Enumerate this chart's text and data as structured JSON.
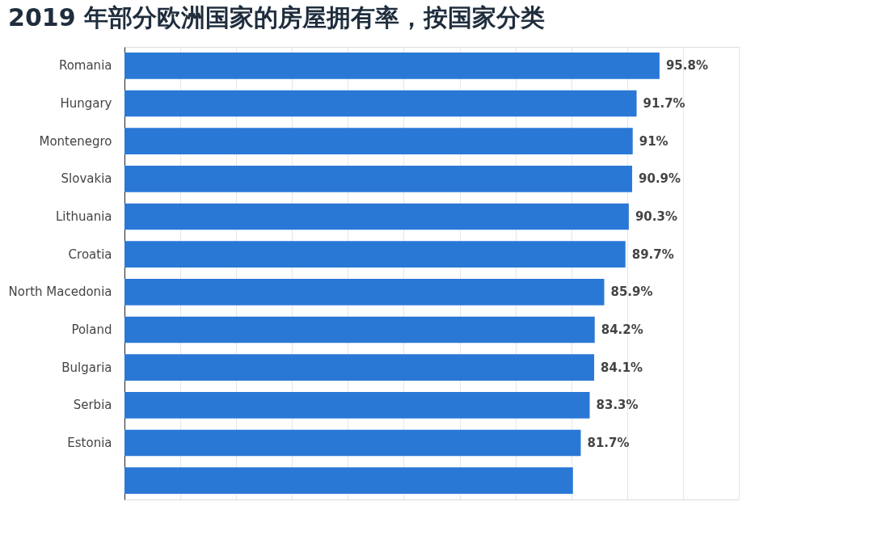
{
  "chart_data": {
    "type": "bar",
    "orientation": "horizontal",
    "title": "2019 年部分欧洲国家的房屋拥有率，按国家分类",
    "categories": [
      "Romania",
      "Hungary",
      "Montenegro",
      "Slovakia",
      "Lithuania",
      "Croatia",
      "North Macedonia",
      "Poland",
      "Bulgaria",
      "Serbia",
      "Estonia",
      null
    ],
    "values": [
      95.8,
      91.7,
      91,
      90.9,
      90.3,
      89.7,
      85.9,
      84.2,
      84.1,
      83.3,
      81.7,
      80.3
    ],
    "value_labels": [
      "95.8%",
      "91.7%",
      "91%",
      "90.9%",
      "90.3%",
      "89.7%",
      "85.9%",
      "84.2%",
      "84.1%",
      "83.3%",
      "81.7%",
      null
    ],
    "color": "#2a78d6",
    "xlim": [
      0,
      110
    ],
    "xticks": [
      {
        "value": 0,
        "label": null
      },
      {
        "value": 10,
        "label": null
      },
      {
        "value": 20,
        "label": null
      },
      {
        "value": 30,
        "label": null
      },
      {
        "value": 40,
        "label": null
      },
      {
        "value": 50,
        "label": null
      },
      {
        "value": 60,
        "label": null
      },
      {
        "value": 70,
        "label": null
      },
      {
        "value": 80,
        "label": null
      },
      {
        "value": 90,
        "label": null
      },
      {
        "value": 100,
        "label": null
      },
      {
        "value": 110,
        "label": null
      }
    ],
    "grid": "x",
    "tick_labels": "y"
  }
}
